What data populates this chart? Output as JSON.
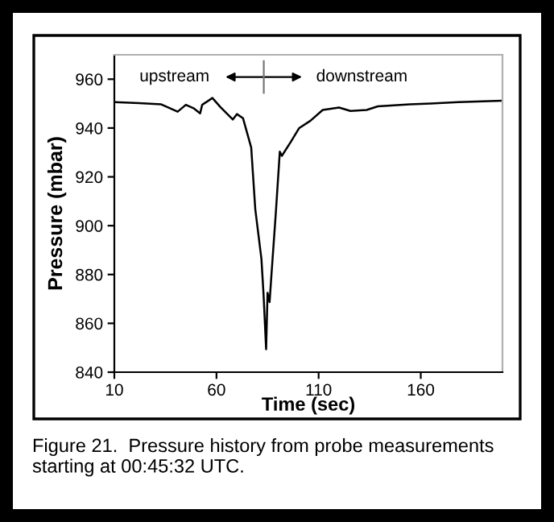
{
  "chart_data": {
    "type": "line",
    "xlabel": "Time (sec)",
    "ylabel": "Pressure (mbar)",
    "x": [
      10,
      22,
      33,
      41,
      45,
      49,
      52,
      53,
      58,
      62,
      68,
      70,
      73,
      77,
      79,
      82,
      83,
      84.3,
      85,
      86,
      87,
      89,
      91,
      92,
      96.5,
      100.5,
      106,
      112,
      120,
      125.6,
      133.5,
      139,
      154.7,
      165,
      178.5,
      200
    ],
    "series": [
      {
        "color": "#000000",
        "values": [
          950.6,
          950.2,
          949.7,
          946.7,
          949.5,
          948,
          946,
          949.5,
          952.3,
          948.5,
          943.5,
          945.7,
          944,
          932,
          906.7,
          886.4,
          872.5,
          849.4,
          872.5,
          868.7,
          881,
          904.6,
          930.3,
          928.6,
          934.5,
          940,
          943,
          947.4,
          948.4,
          947,
          947.4,
          948.9,
          949.7,
          950,
          950.6,
          951.2
        ]
      }
    ],
    "xlim": [
      10,
      200
    ],
    "xticks": [
      10,
      60,
      110,
      160
    ],
    "ylim": [
      840,
      970
    ],
    "yticks": [
      840,
      860,
      880,
      900,
      920,
      940,
      960
    ],
    "grid": false,
    "legend": false,
    "annotations": [
      "upstream",
      "downstream",
      "Figure 21.  Pressure history from probe measurements starting at 00:45:32 UTC."
    ]
  }
}
